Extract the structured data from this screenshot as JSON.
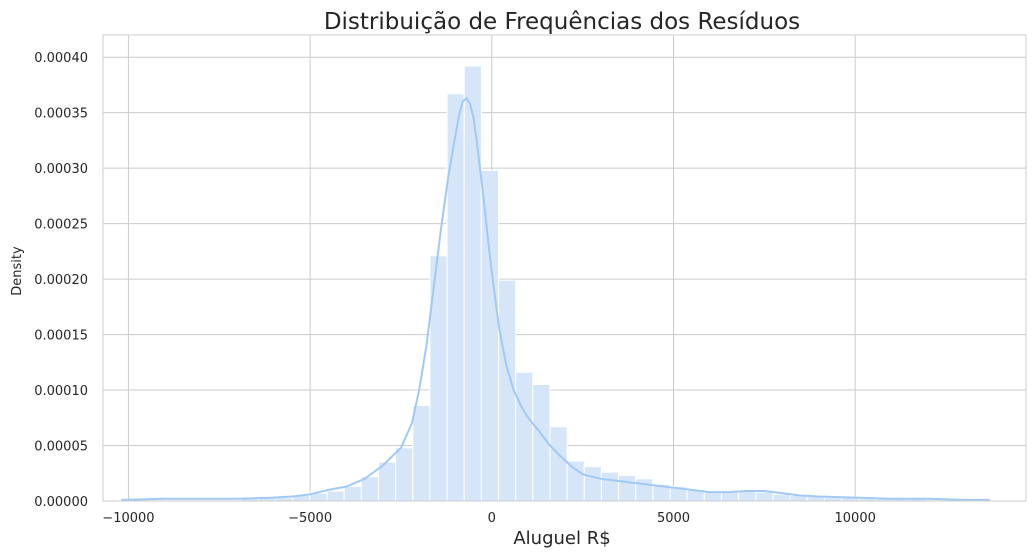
{
  "chart_data": {
    "type": "bar",
    "title": "Distribuição de Frequências dos Resíduos",
    "xlabel": "Aluguel R$",
    "ylabel": "Density",
    "xlim": [
      -10700,
      14700
    ],
    "ylim": [
      0,
      0.00042
    ],
    "grid": true,
    "x_ticks": [
      -10000,
      -5000,
      0,
      5000,
      10000
    ],
    "x_tick_labels": [
      "−10000",
      "−5000",
      "0",
      "5000",
      "10000"
    ],
    "y_ticks": [
      0,
      5e-05,
      0.0001,
      0.00015,
      0.0002,
      0.00025,
      0.0003,
      0.00035,
      0.0004
    ],
    "y_tick_labels": [
      "0.00000",
      "0.00005",
      "0.00010",
      "0.00015",
      "0.00020",
      "0.00025",
      "0.00030",
      "0.00035",
      "0.00040"
    ],
    "bar_color": "#d6e6f8",
    "kde_color": "#a1c9f4",
    "bin_edges": [
      -10200,
      -9728,
      -9256,
      -8784,
      -8312,
      -7840,
      -7368,
      -6896,
      -6424,
      -5952,
      -5480,
      -5008,
      -4536,
      -4064,
      -3592,
      -3120,
      -2648,
      -2176,
      -1704,
      -1232,
      -760,
      -288,
      184,
      656,
      1128,
      1600,
      2072,
      2544,
      3016,
      3488,
      3960,
      4432,
      4904,
      5376,
      5848,
      6320,
      6792,
      7264,
      7736,
      8208,
      8680,
      9152,
      9624,
      10096,
      10568,
      11040,
      11512,
      11984,
      12456,
      12928,
      13400,
      13872
    ],
    "histogram_values": [
      1e-06,
      1e-06,
      1e-06,
      1e-06,
      1e-06,
      1e-06,
      1e-06,
      2e-06,
      3e-06,
      3e-06,
      5e-06,
      7e-06,
      9e-06,
      1.3e-05,
      2.2e-05,
      3.5e-05,
      4.8e-05,
      8.6e-05,
      0.000221,
      0.000367,
      0.000392,
      0.000298,
      0.000199,
      0.000116,
      0.000105,
      6.7e-05,
      3.6e-05,
      3.1e-05,
      2.6e-05,
      2.3e-05,
      2e-05,
      1.5e-05,
      1.3e-05,
      1e-05,
      8e-06,
      9e-06,
      1e-05,
      8e-06,
      6e-06,
      5e-06,
      4e-06,
      3e-06,
      3e-06,
      2e-06,
      2e-06,
      2e-06,
      2e-06,
      1e-06,
      1e-06,
      1e-06,
      1e-06
    ],
    "kde": {
      "x": [
        -10200,
        -9000,
        -8000,
        -7000,
        -6000,
        -5500,
        -5000,
        -4500,
        -4000,
        -3500,
        -3000,
        -2500,
        -2200,
        -2000,
        -1800,
        -1600,
        -1400,
        -1200,
        -1000,
        -900,
        -800,
        -700,
        -600,
        -500,
        -400,
        -300,
        -200,
        -100,
        0,
        200,
        400,
        600,
        800,
        1000,
        1300,
        1600,
        1900,
        2200,
        2500,
        3000,
        3500,
        4000,
        4500,
        5000,
        5500,
        6000,
        6500,
        7000,
        7500,
        8000,
        8500,
        9000,
        10000,
        11000,
        12000,
        13000,
        13700
      ],
      "y": [
        1e-06,
        2e-06,
        2e-06,
        2e-06,
        3e-06,
        4e-06,
        6e-06,
        1e-05,
        1.3e-05,
        2e-05,
        3.2e-05,
        4.8e-05,
        7e-05,
        0.0001,
        0.00014,
        0.000192,
        0.000245,
        0.000292,
        0.00033,
        0.000348,
        0.00036,
        0.000363,
        0.000358,
        0.000345,
        0.00032,
        0.000293,
        0.000265,
        0.000234,
        0.000206,
        0.000156,
        0.000122,
        0.0001,
        8.6e-05,
        7.5e-05,
        6.3e-05,
        5e-05,
        4e-05,
        3.1e-05,
        2.4e-05,
        2e-05,
        1.8e-05,
        1.6e-05,
        1.4e-05,
        1.2e-05,
        1e-05,
        8e-06,
        8e-06,
        9e-06,
        9e-06,
        7e-06,
        5e-06,
        4e-06,
        3e-06,
        2e-06,
        2e-06,
        1e-06,
        1e-06
      ]
    }
  }
}
